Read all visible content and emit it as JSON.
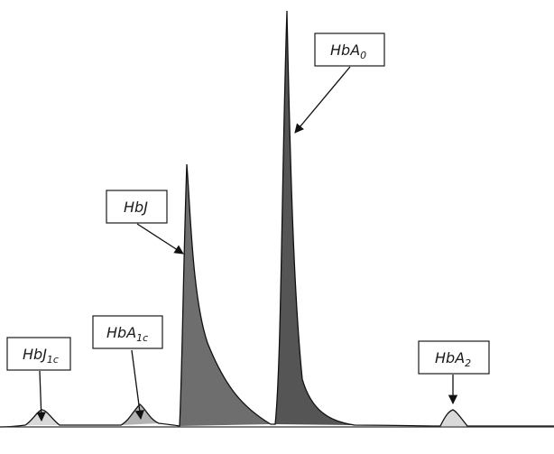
{
  "peaks": [
    {
      "id": "hbj1c",
      "label": "HbJ",
      "subscript": "1c",
      "fill": "#d9d9d9"
    },
    {
      "id": "hba1c",
      "label": "HbA",
      "subscript": "1c",
      "fill": "#b3b3b3"
    },
    {
      "id": "hbj",
      "label": "HbJ",
      "subscript": "",
      "fill": "#6e6e6e"
    },
    {
      "id": "hba0",
      "label": "HbA",
      "subscript": "0",
      "fill": "#555555"
    },
    {
      "id": "hba2",
      "label": "HbA",
      "subscript": "2",
      "fill": "#d9d9d9"
    }
  ]
}
